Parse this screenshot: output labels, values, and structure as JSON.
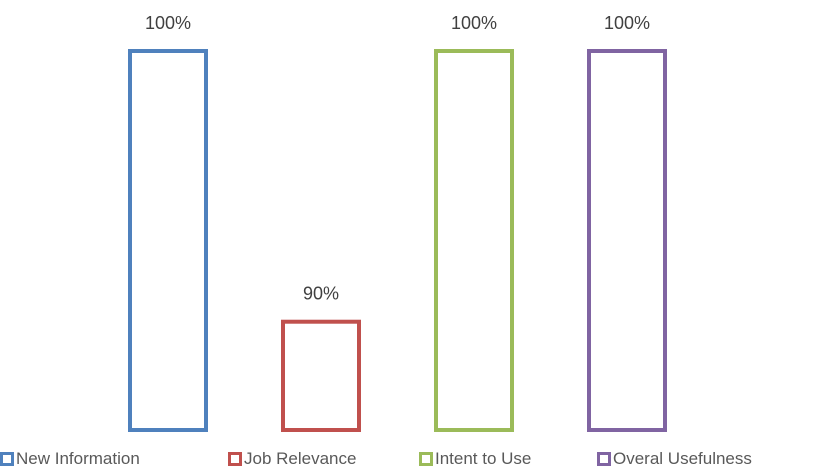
{
  "chart_data": {
    "type": "bar",
    "categories": [
      "New Information",
      "Job Relevance",
      "Intent to Use",
      "Overal Usefulness"
    ],
    "values": [
      100,
      90,
      100,
      100
    ],
    "data_labels": [
      "100%",
      "90%",
      "100%",
      "100%"
    ],
    "colors": [
      "#4F81BD",
      "#C0504D",
      "#9BBB59",
      "#8064A2"
    ],
    "fill": "none",
    "ylim": [
      86,
      100
    ],
    "grid": false,
    "axes_visible": false,
    "legend": {
      "placement": "bottom",
      "items": [
        {
          "label": "New Information",
          "color": "#4F81BD"
        },
        {
          "label": "Job Relevance",
          "color": "#C0504D"
        },
        {
          "label": "Intent to Use",
          "color": "#9BBB59"
        },
        {
          "label": "Overal Usefulness",
          "color": "#8064A2"
        }
      ]
    }
  }
}
